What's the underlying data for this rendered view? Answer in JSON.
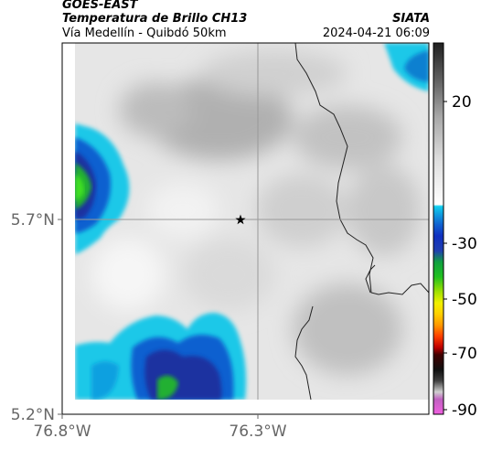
{
  "header": {
    "title_line1": "GOES-EAST",
    "title_line2": "Temperatura de Brillo CH13",
    "subtitle": "Vía Medellín - Quibdó 50km",
    "source": "SIATA",
    "datetime": "2024-04-21 06:09"
  },
  "map": {
    "lat_ticks": [
      "5.7°N",
      "5.2°N"
    ],
    "lon_ticks": [
      "76.8°W",
      "76.3°W"
    ],
    "marker": "star",
    "gridline_color": "#999999"
  },
  "colorbar": {
    "labels": [
      "20",
      "-30",
      "-50",
      "-70",
      "-90"
    ],
    "colors": {
      "cold_magenta": "#c060c0",
      "black": "#101010",
      "red": "#e02020",
      "orange": "#ff8c00",
      "yellow": "#f0f000",
      "green": "#20c020",
      "blue": "#1040c0",
      "cyan": "#10c8e8"
    }
  }
}
